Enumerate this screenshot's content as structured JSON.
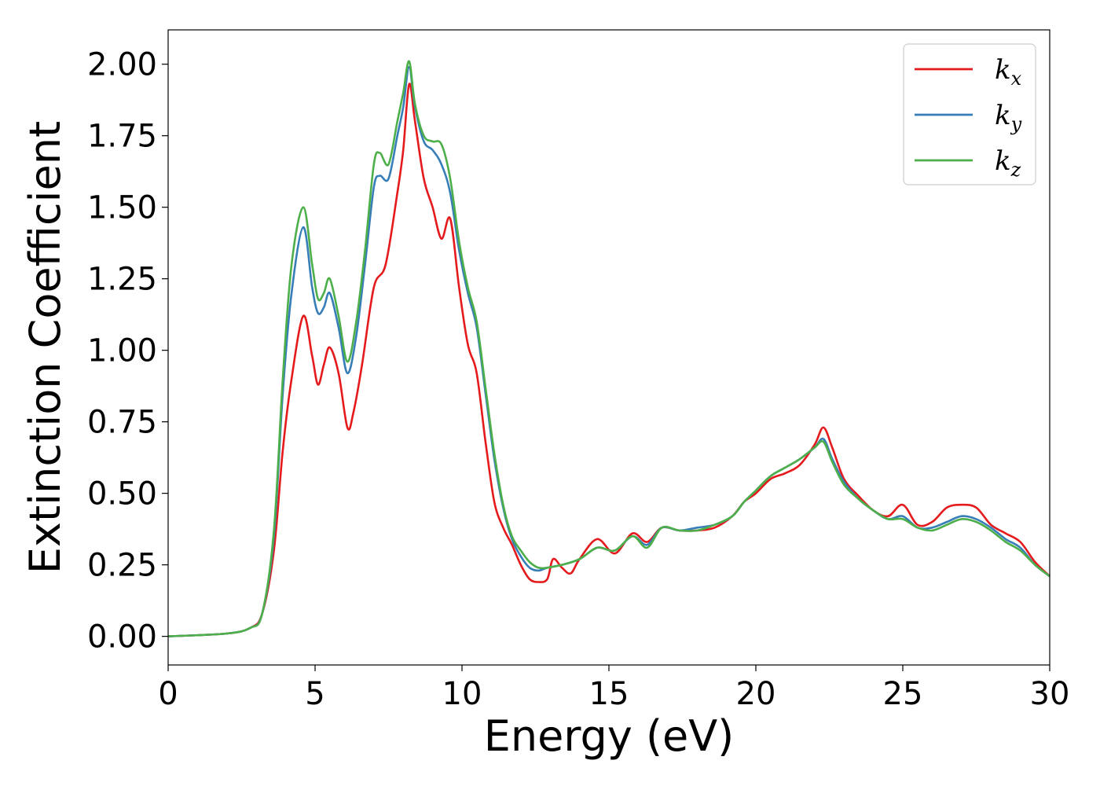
{
  "chart_data": {
    "type": "line",
    "xlabel": "Energy (eV)",
    "ylabel": "Extinction Coefficient",
    "xlim": [
      0,
      30
    ],
    "ylim": [
      -0.1,
      2.12
    ],
    "x_ticks": [
      "0",
      "5",
      "10",
      "15",
      "20",
      "25",
      "30"
    ],
    "y_ticks": [
      "0.00",
      "0.25",
      "0.50",
      "0.75",
      "1.00",
      "1.25",
      "1.50",
      "1.75",
      "2.00"
    ],
    "grid": false,
    "legend_position": "top-right",
    "series": [
      {
        "name": "k_x",
        "legend_main": "k",
        "legend_sub": "x",
        "color": "#e41a1c",
        "points": [
          [
            0,
            0.0
          ],
          [
            2.0,
            0.01
          ],
          [
            2.8,
            0.03
          ],
          [
            3.2,
            0.08
          ],
          [
            3.6,
            0.3
          ],
          [
            3.9,
            0.65
          ],
          [
            4.2,
            0.9
          ],
          [
            4.6,
            1.12
          ],
          [
            4.9,
            0.98
          ],
          [
            5.1,
            0.88
          ],
          [
            5.3,
            0.95
          ],
          [
            5.5,
            1.01
          ],
          [
            5.8,
            0.92
          ],
          [
            6.1,
            0.73
          ],
          [
            6.3,
            0.78
          ],
          [
            6.6,
            0.95
          ],
          [
            7.0,
            1.22
          ],
          [
            7.4,
            1.3
          ],
          [
            7.8,
            1.55
          ],
          [
            8.0,
            1.7
          ],
          [
            8.2,
            1.93
          ],
          [
            8.4,
            1.8
          ],
          [
            8.7,
            1.6
          ],
          [
            9.0,
            1.5
          ],
          [
            9.3,
            1.39
          ],
          [
            9.6,
            1.46
          ],
          [
            9.9,
            1.22
          ],
          [
            10.2,
            1.02
          ],
          [
            10.5,
            0.92
          ],
          [
            10.8,
            0.68
          ],
          [
            11.1,
            0.47
          ],
          [
            11.4,
            0.38
          ],
          [
            11.7,
            0.32
          ],
          [
            12.0,
            0.25
          ],
          [
            12.3,
            0.2
          ],
          [
            12.6,
            0.19
          ],
          [
            12.9,
            0.2
          ],
          [
            13.1,
            0.27
          ],
          [
            13.4,
            0.24
          ],
          [
            13.7,
            0.22
          ],
          [
            14.0,
            0.27
          ],
          [
            14.6,
            0.34
          ],
          [
            15.2,
            0.29
          ],
          [
            15.8,
            0.36
          ],
          [
            16.3,
            0.33
          ],
          [
            16.8,
            0.38
          ],
          [
            17.4,
            0.37
          ],
          [
            18.0,
            0.37
          ],
          [
            18.6,
            0.38
          ],
          [
            19.2,
            0.42
          ],
          [
            19.6,
            0.47
          ],
          [
            20.0,
            0.5
          ],
          [
            20.5,
            0.55
          ],
          [
            21.0,
            0.57
          ],
          [
            21.5,
            0.6
          ],
          [
            22.0,
            0.67
          ],
          [
            22.3,
            0.73
          ],
          [
            22.6,
            0.66
          ],
          [
            23.0,
            0.55
          ],
          [
            23.5,
            0.49
          ],
          [
            24.0,
            0.44
          ],
          [
            24.5,
            0.42
          ],
          [
            25.0,
            0.46
          ],
          [
            25.5,
            0.39
          ],
          [
            26.0,
            0.4
          ],
          [
            26.5,
            0.45
          ],
          [
            27.0,
            0.46
          ],
          [
            27.5,
            0.45
          ],
          [
            28.0,
            0.39
          ],
          [
            28.5,
            0.36
          ],
          [
            29.0,
            0.33
          ],
          [
            29.5,
            0.26
          ],
          [
            30.0,
            0.21
          ]
        ]
      },
      {
        "name": "k_y",
        "legend_main": "k",
        "legend_sub": "y",
        "color": "#377eb8",
        "points": [
          [
            0,
            0.0
          ],
          [
            2.0,
            0.01
          ],
          [
            2.8,
            0.03
          ],
          [
            3.2,
            0.08
          ],
          [
            3.6,
            0.35
          ],
          [
            3.9,
            0.85
          ],
          [
            4.2,
            1.2
          ],
          [
            4.6,
            1.43
          ],
          [
            4.9,
            1.22
          ],
          [
            5.1,
            1.13
          ],
          [
            5.3,
            1.15
          ],
          [
            5.5,
            1.2
          ],
          [
            5.8,
            1.08
          ],
          [
            6.1,
            0.92
          ],
          [
            6.4,
            1.05
          ],
          [
            6.7,
            1.3
          ],
          [
            7.0,
            1.57
          ],
          [
            7.2,
            1.61
          ],
          [
            7.5,
            1.6
          ],
          [
            7.8,
            1.75
          ],
          [
            8.0,
            1.85
          ],
          [
            8.2,
            1.99
          ],
          [
            8.4,
            1.85
          ],
          [
            8.7,
            1.73
          ],
          [
            9.0,
            1.7
          ],
          [
            9.3,
            1.65
          ],
          [
            9.6,
            1.55
          ],
          [
            9.9,
            1.35
          ],
          [
            10.2,
            1.2
          ],
          [
            10.5,
            1.08
          ],
          [
            10.8,
            0.85
          ],
          [
            11.1,
            0.62
          ],
          [
            11.4,
            0.45
          ],
          [
            11.7,
            0.34
          ],
          [
            12.0,
            0.28
          ],
          [
            12.3,
            0.24
          ],
          [
            12.6,
            0.23
          ],
          [
            12.9,
            0.24
          ],
          [
            13.4,
            0.25
          ],
          [
            14.0,
            0.27
          ],
          [
            14.6,
            0.31
          ],
          [
            15.2,
            0.3
          ],
          [
            15.8,
            0.35
          ],
          [
            16.3,
            0.32
          ],
          [
            16.8,
            0.38
          ],
          [
            17.4,
            0.37
          ],
          [
            18.0,
            0.38
          ],
          [
            18.6,
            0.39
          ],
          [
            19.2,
            0.42
          ],
          [
            19.6,
            0.47
          ],
          [
            20.0,
            0.51
          ],
          [
            20.5,
            0.56
          ],
          [
            21.0,
            0.59
          ],
          [
            21.5,
            0.62
          ],
          [
            22.0,
            0.66
          ],
          [
            22.3,
            0.69
          ],
          [
            22.6,
            0.62
          ],
          [
            23.0,
            0.54
          ],
          [
            23.5,
            0.48
          ],
          [
            24.0,
            0.44
          ],
          [
            24.5,
            0.41
          ],
          [
            25.0,
            0.42
          ],
          [
            25.5,
            0.38
          ],
          [
            26.0,
            0.38
          ],
          [
            26.5,
            0.4
          ],
          [
            27.0,
            0.42
          ],
          [
            27.5,
            0.41
          ],
          [
            28.0,
            0.38
          ],
          [
            28.5,
            0.34
          ],
          [
            29.0,
            0.31
          ],
          [
            29.5,
            0.25
          ],
          [
            30.0,
            0.21
          ]
        ]
      },
      {
        "name": "k_z",
        "legend_main": "k",
        "legend_sub": "z",
        "color": "#4daf4a",
        "points": [
          [
            0,
            0.0
          ],
          [
            2.0,
            0.01
          ],
          [
            2.8,
            0.03
          ],
          [
            3.2,
            0.08
          ],
          [
            3.6,
            0.37
          ],
          [
            3.9,
            0.9
          ],
          [
            4.2,
            1.3
          ],
          [
            4.6,
            1.5
          ],
          [
            4.9,
            1.3
          ],
          [
            5.1,
            1.18
          ],
          [
            5.3,
            1.2
          ],
          [
            5.5,
            1.25
          ],
          [
            5.8,
            1.12
          ],
          [
            6.1,
            0.96
          ],
          [
            6.4,
            1.1
          ],
          [
            6.7,
            1.35
          ],
          [
            7.0,
            1.65
          ],
          [
            7.2,
            1.69
          ],
          [
            7.5,
            1.65
          ],
          [
            7.8,
            1.8
          ],
          [
            8.0,
            1.9
          ],
          [
            8.2,
            2.01
          ],
          [
            8.4,
            1.86
          ],
          [
            8.7,
            1.75
          ],
          [
            9.0,
            1.73
          ],
          [
            9.3,
            1.72
          ],
          [
            9.6,
            1.6
          ],
          [
            9.9,
            1.38
          ],
          [
            10.2,
            1.22
          ],
          [
            10.5,
            1.1
          ],
          [
            10.8,
            0.87
          ],
          [
            11.1,
            0.64
          ],
          [
            11.4,
            0.46
          ],
          [
            11.7,
            0.35
          ],
          [
            12.0,
            0.3
          ],
          [
            12.3,
            0.26
          ],
          [
            12.6,
            0.24
          ],
          [
            12.9,
            0.24
          ],
          [
            13.4,
            0.25
          ],
          [
            14.0,
            0.27
          ],
          [
            14.6,
            0.31
          ],
          [
            15.2,
            0.3
          ],
          [
            15.8,
            0.35
          ],
          [
            16.3,
            0.31
          ],
          [
            16.8,
            0.38
          ],
          [
            17.4,
            0.37
          ],
          [
            18.0,
            0.37
          ],
          [
            18.6,
            0.39
          ],
          [
            19.2,
            0.42
          ],
          [
            19.6,
            0.47
          ],
          [
            20.0,
            0.51
          ],
          [
            20.5,
            0.56
          ],
          [
            21.0,
            0.59
          ],
          [
            21.5,
            0.62
          ],
          [
            22.0,
            0.66
          ],
          [
            22.3,
            0.68
          ],
          [
            22.6,
            0.61
          ],
          [
            23.0,
            0.53
          ],
          [
            23.5,
            0.48
          ],
          [
            24.0,
            0.44
          ],
          [
            24.5,
            0.41
          ],
          [
            25.0,
            0.41
          ],
          [
            25.5,
            0.38
          ],
          [
            26.0,
            0.37
          ],
          [
            26.5,
            0.39
          ],
          [
            27.0,
            0.41
          ],
          [
            27.5,
            0.4
          ],
          [
            28.0,
            0.37
          ],
          [
            28.5,
            0.33
          ],
          [
            29.0,
            0.3
          ],
          [
            29.5,
            0.25
          ],
          [
            30.0,
            0.21
          ]
        ]
      }
    ]
  }
}
